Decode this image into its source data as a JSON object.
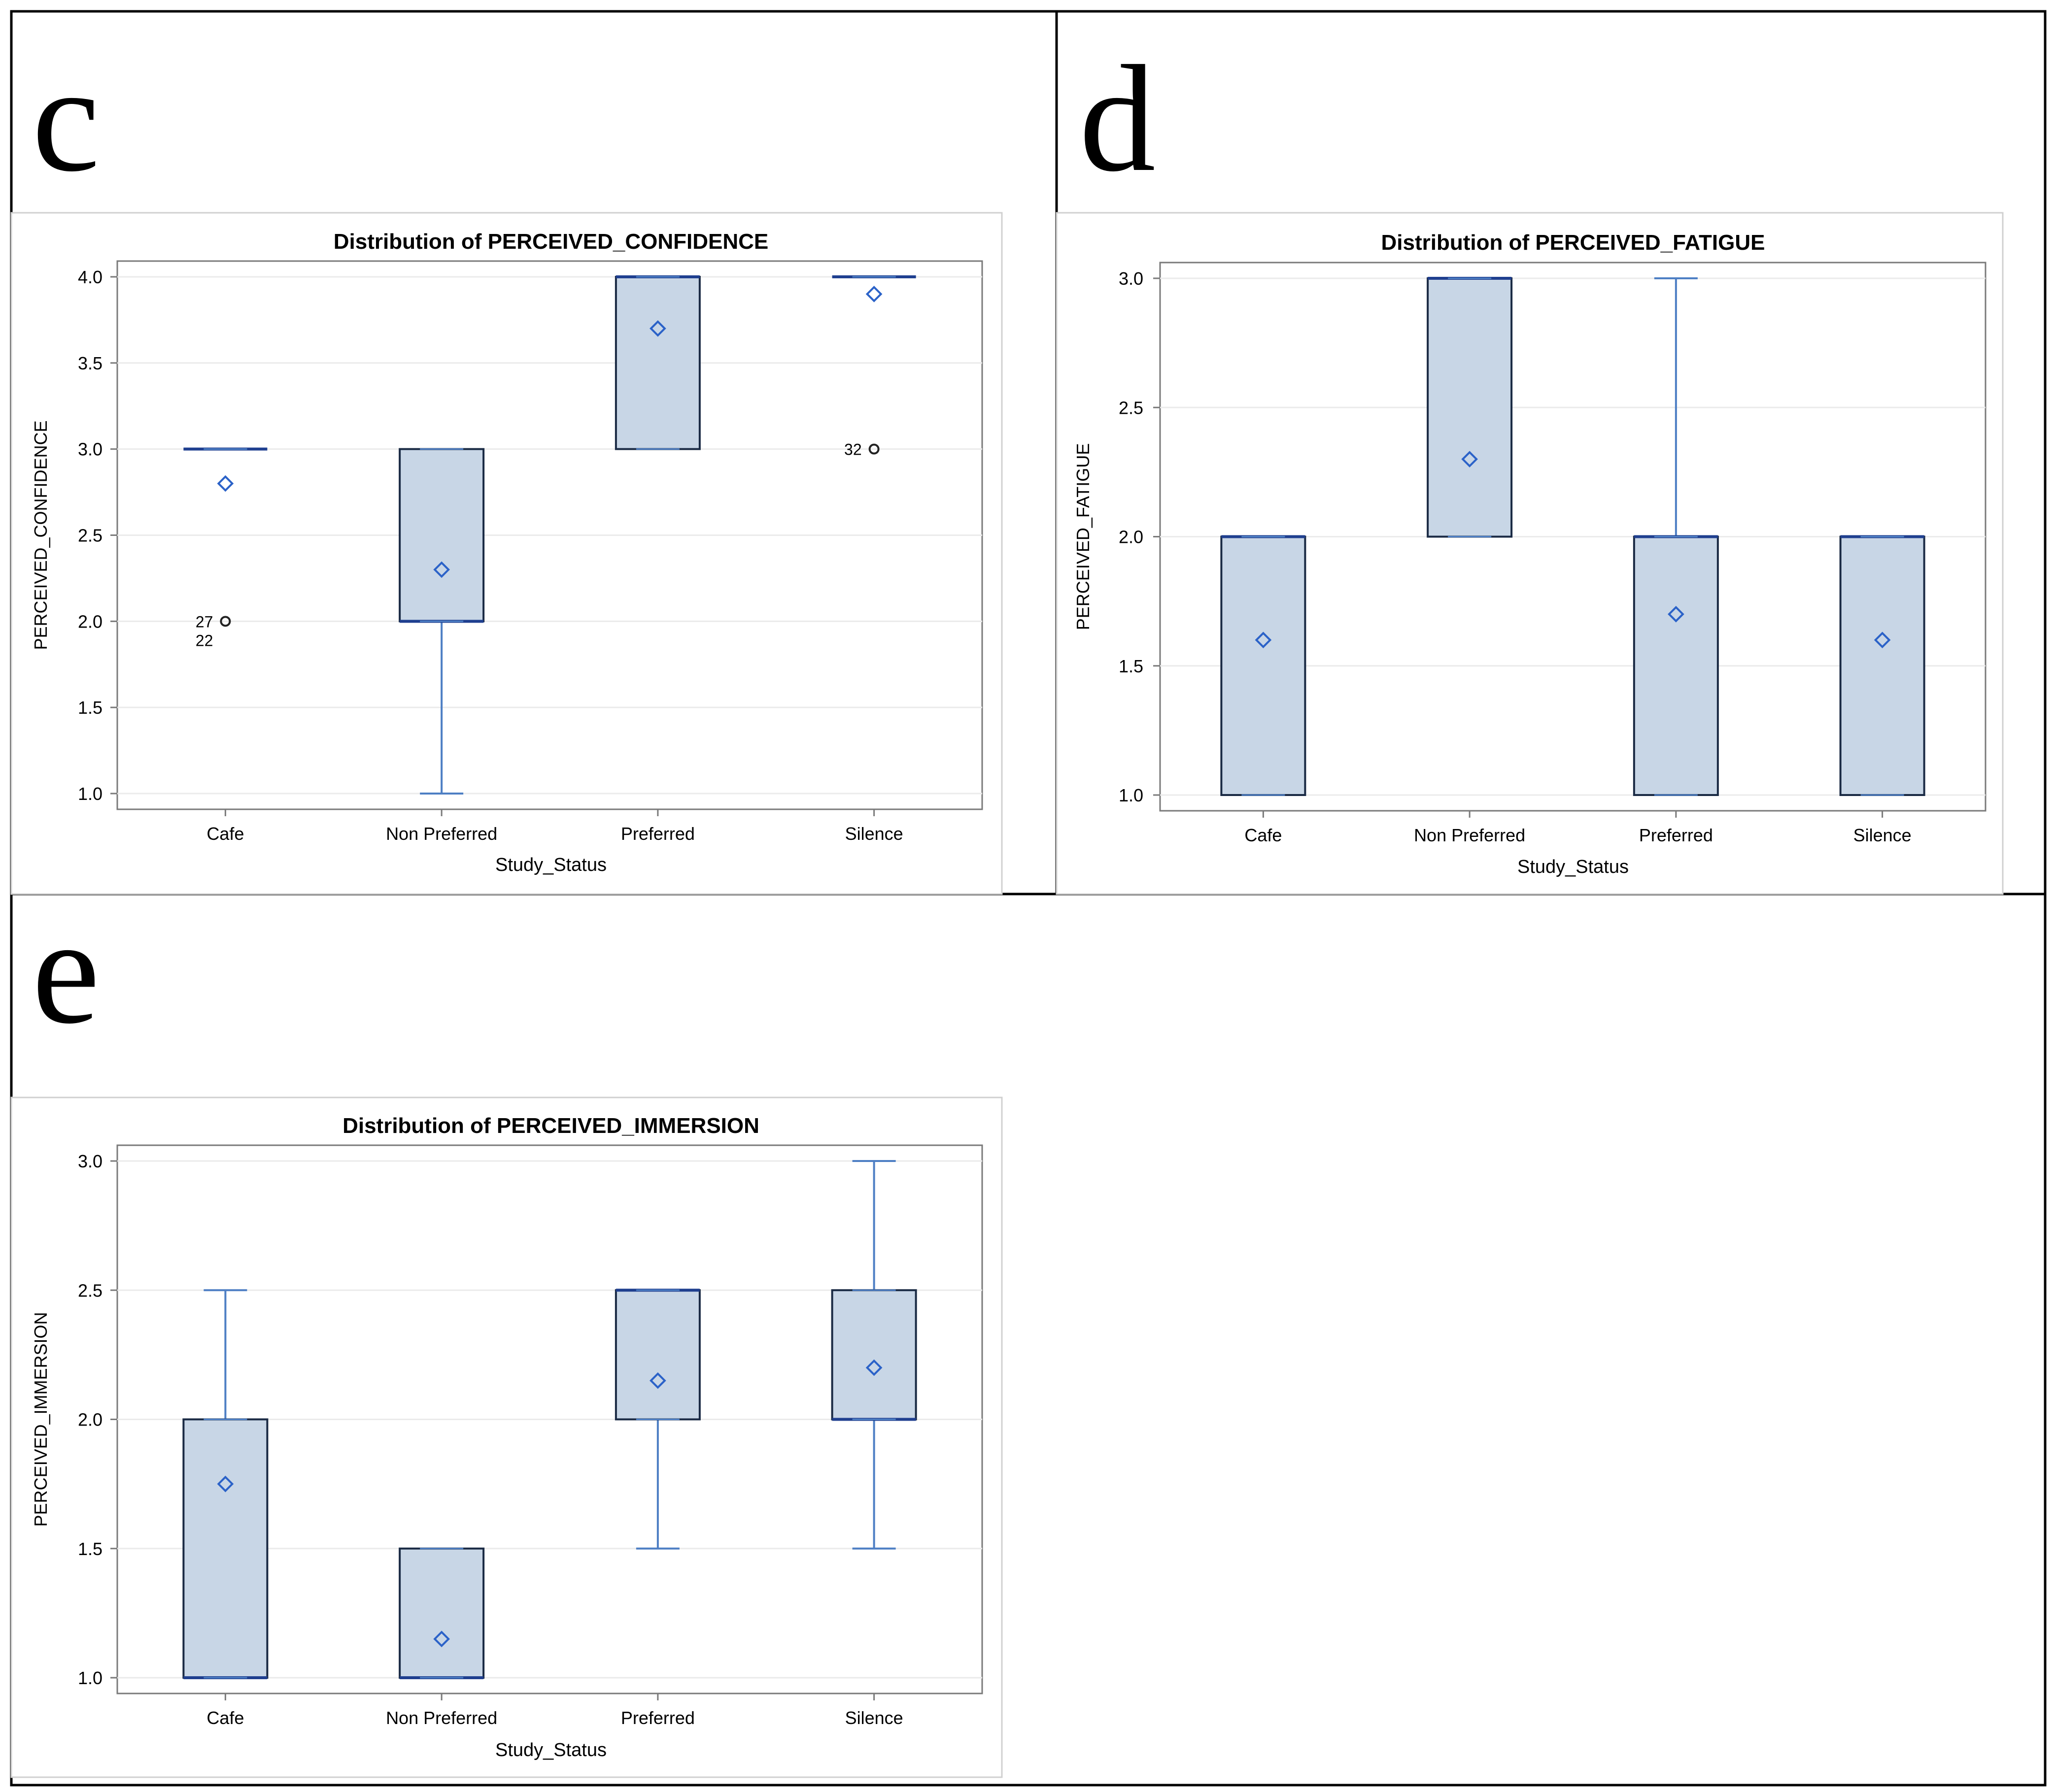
{
  "panels": [
    {
      "letter": "c"
    },
    {
      "letter": "d"
    },
    {
      "letter": "e"
    }
  ],
  "colors": {
    "box_fill": "#c8d6e6",
    "box_stroke": "#1a2a44",
    "median": "#1f3f8f",
    "whisker": "#4e7fc4",
    "mean_marker": "#2b62c8",
    "grid": "#ebebeb",
    "frame": "#000000"
  },
  "chart_data": [
    {
      "type": "boxplot",
      "title": "Distribution of PERCEIVED_CONFIDENCE",
      "xlabel": "Study_Status",
      "ylabel": "PERCEIVED_CONFIDENCE",
      "categories": [
        "Cafe",
        "Non Preferred",
        "Preferred",
        "Silence"
      ],
      "ylim": [
        1.0,
        4.0
      ],
      "yticks": [
        "1.0",
        "1.5",
        "2.0",
        "2.5",
        "3.0",
        "3.5",
        "4.0"
      ],
      "boxes": [
        {
          "q1": 3.0,
          "median": 3.0,
          "q3": 3.0,
          "whisker_low": 3.0,
          "whisker_high": 3.0,
          "mean": 2.8,
          "outliers": [
            {
              "value": 2.0,
              "labels": [
                "27",
                "22"
              ]
            }
          ]
        },
        {
          "q1": 2.0,
          "median": 2.0,
          "q3": 3.0,
          "whisker_low": 1.0,
          "whisker_high": 3.0,
          "mean": 2.3,
          "outliers": []
        },
        {
          "q1": 3.0,
          "median": 4.0,
          "q3": 4.0,
          "whisker_low": 3.0,
          "whisker_high": 4.0,
          "mean": 3.7,
          "outliers": []
        },
        {
          "q1": 4.0,
          "median": 4.0,
          "q3": 4.0,
          "whisker_low": 4.0,
          "whisker_high": 4.0,
          "mean": 3.9,
          "outliers": [
            {
              "value": 3.0,
              "labels": [
                "32"
              ]
            }
          ]
        }
      ]
    },
    {
      "type": "boxplot",
      "title": "Distribution of PERCEIVED_FATIGUE",
      "xlabel": "Study_Status",
      "ylabel": "PERCEIVED_FATIGUE",
      "categories": [
        "Cafe",
        "Non Preferred",
        "Preferred",
        "Silence"
      ],
      "ylim": [
        1.0,
        3.0
      ],
      "yticks": [
        "1.0",
        "1.5",
        "2.0",
        "2.5",
        "3.0"
      ],
      "boxes": [
        {
          "q1": 1.0,
          "median": 2.0,
          "q3": 2.0,
          "whisker_low": 1.0,
          "whisker_high": 2.0,
          "mean": 1.6,
          "outliers": []
        },
        {
          "q1": 2.0,
          "median": 3.0,
          "q3": 3.0,
          "whisker_low": 2.0,
          "whisker_high": 3.0,
          "mean": 2.3,
          "outliers": []
        },
        {
          "q1": 1.0,
          "median": 2.0,
          "q3": 2.0,
          "whisker_low": 1.0,
          "whisker_high": 3.0,
          "mean": 1.7,
          "outliers": []
        },
        {
          "q1": 1.0,
          "median": 2.0,
          "q3": 2.0,
          "whisker_low": 1.0,
          "whisker_high": 2.0,
          "mean": 1.6,
          "outliers": []
        }
      ]
    },
    {
      "type": "boxplot",
      "title": "Distribution of PERCEIVED_IMMERSION",
      "xlabel": "Study_Status",
      "ylabel": "PERCEIVED_IMMERSION",
      "categories": [
        "Cafe",
        "Non Preferred",
        "Preferred",
        "Silence"
      ],
      "ylim": [
        1.0,
        3.0
      ],
      "yticks": [
        "1.0",
        "1.5",
        "2.0",
        "2.5",
        "3.0"
      ],
      "boxes": [
        {
          "q1": 1.0,
          "median": 1.0,
          "q3": 2.0,
          "whisker_low": 1.0,
          "whisker_high": 2.5,
          "mean": 1.75,
          "outliers": []
        },
        {
          "q1": 1.0,
          "median": 1.0,
          "q3": 1.5,
          "whisker_low": 1.0,
          "whisker_high": 1.5,
          "mean": 1.15,
          "outliers": []
        },
        {
          "q1": 2.0,
          "median": 2.5,
          "q3": 2.5,
          "whisker_low": 1.5,
          "whisker_high": 2.5,
          "mean": 2.15,
          "outliers": []
        },
        {
          "q1": 2.0,
          "median": 2.0,
          "q3": 2.5,
          "whisker_low": 1.5,
          "whisker_high": 3.0,
          "mean": 2.2,
          "outliers": []
        }
      ]
    }
  ]
}
